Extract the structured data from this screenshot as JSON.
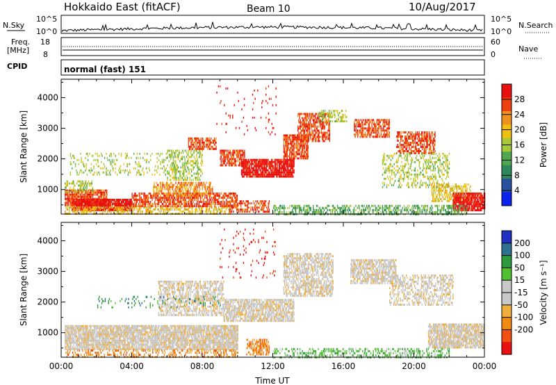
{
  "header": {
    "station": "Hokkaido East (fitACF)",
    "beam": "Beam 10",
    "date": "10/Aug/2017"
  },
  "strip_labels": {
    "nsky": "N.Sky",
    "nsearch": "N.Search",
    "freq_line1": "Freq.",
    "freq_line2": "[MHz]",
    "nave": "Nave",
    "cpid": "CPID",
    "cpid_value": "normal (fast) 151",
    "nsky_ticks": [
      "10^5",
      "10^0"
    ],
    "freq_ticks": [
      "18",
      "8"
    ],
    "nave_ticks": [
      "60",
      "0"
    ]
  },
  "colors": {
    "power": [
      "#0a22ee",
      "#2a50a0",
      "#2e8a5a",
      "#4fa84f",
      "#a8c83a",
      "#f0c010",
      "#f09020",
      "#f04010",
      "#e81010"
    ],
    "velocity": [
      "#e81010",
      "#f05010",
      "#f08a10",
      "#f0b040",
      "#c8c8c8",
      "#c8c8c8",
      "#50c030",
      "#2e9a40",
      "#2e7090",
      "#2030c0"
    ]
  },
  "chart_data": [
    {
      "type": "heatmap",
      "name": "power",
      "ylabel": "Slant Range [km]",
      "xlabel": "",
      "x_ticks": [
        "00:00",
        "04:00",
        "08:00",
        "12:00",
        "16:00",
        "20:00",
        "00:00"
      ],
      "x_hours": [
        0,
        4,
        8,
        12,
        16,
        20,
        24
      ],
      "xlim": [
        0,
        24
      ],
      "y_ticks": [
        1000,
        2000,
        3000,
        4000
      ],
      "ylim": [
        200,
        4600
      ],
      "colorbar_label": "Power [dB]",
      "colorbar_ticks": [
        "28",
        "24",
        "20",
        "16",
        "12",
        "8",
        "4"
      ],
      "colorbar_values": [
        28,
        24,
        20,
        16,
        12,
        8,
        4
      ],
      "colorbar_range": [
        0,
        32
      ],
      "regions": [
        {
          "x0": 0.2,
          "x1": 2.6,
          "y0": 500,
          "y1": 1000,
          "color_index": 7,
          "density": 0.8
        },
        {
          "x0": 0.2,
          "x1": 1.8,
          "y0": 900,
          "y1": 1300,
          "color_index": 4,
          "density": 0.4
        },
        {
          "x0": 0.6,
          "x1": 4.0,
          "y0": 350,
          "y1": 700,
          "color_index": 8,
          "density": 0.9
        },
        {
          "x0": 0.2,
          "x1": 9.6,
          "y0": 200,
          "y1": 450,
          "color_index": 5,
          "density": 0.5
        },
        {
          "x0": 4.0,
          "x1": 10.0,
          "y0": 450,
          "y1": 900,
          "color_index": 7,
          "density": 0.65
        },
        {
          "x0": 5.2,
          "x1": 8.6,
          "y0": 800,
          "y1": 1250,
          "color_index": 6,
          "density": 0.55
        },
        {
          "x0": 9.5,
          "x1": 11.8,
          "y0": 300,
          "y1": 650,
          "color_index": 7,
          "density": 0.5
        },
        {
          "x0": 6.0,
          "x1": 8.0,
          "y0": 1300,
          "y1": 2300,
          "color_index": 4,
          "density": 0.4
        },
        {
          "x0": 7.2,
          "x1": 8.8,
          "y0": 2300,
          "y1": 2700,
          "color_index": 7,
          "density": 0.7
        },
        {
          "x0": 9.0,
          "x1": 10.4,
          "y0": 1800,
          "y1": 2300,
          "color_index": 7,
          "density": 0.7
        },
        {
          "x0": 10.2,
          "x1": 13.2,
          "y0": 1400,
          "y1": 2000,
          "color_index": 8,
          "density": 0.85
        },
        {
          "x0": 12.6,
          "x1": 14.0,
          "y0": 2000,
          "y1": 2800,
          "color_index": 7,
          "density": 0.75
        },
        {
          "x0": 13.4,
          "x1": 15.2,
          "y0": 2600,
          "y1": 3500,
          "color_index": 7,
          "density": 0.6
        },
        {
          "x0": 14.6,
          "x1": 16.2,
          "y0": 3200,
          "y1": 3600,
          "color_index": 4,
          "density": 0.4
        },
        {
          "x0": 16.6,
          "x1": 18.6,
          "y0": 2700,
          "y1": 3300,
          "color_index": 7,
          "density": 0.65
        },
        {
          "x0": 19.0,
          "x1": 21.2,
          "y0": 2200,
          "y1": 2900,
          "color_index": 7,
          "density": 0.6
        },
        {
          "x0": 18.2,
          "x1": 22.0,
          "y0": 1100,
          "y1": 2200,
          "color_index": 4,
          "density": 0.3
        },
        {
          "x0": 21.0,
          "x1": 23.2,
          "y0": 600,
          "y1": 1200,
          "color_index": 5,
          "density": 0.5
        },
        {
          "x0": 22.2,
          "x1": 24.0,
          "y0": 300,
          "y1": 900,
          "color_index": 8,
          "density": 0.85
        },
        {
          "x0": 12.0,
          "x1": 23.0,
          "y0": 200,
          "y1": 500,
          "color_index": 3,
          "density": 0.45
        },
        {
          "x0": 8.8,
          "x1": 12.2,
          "y0": 2800,
          "y1": 4400,
          "color_index": 8,
          "density": 0.04
        },
        {
          "x0": 0.5,
          "x1": 6.0,
          "y0": 1500,
          "y1": 2200,
          "color_index": 4,
          "density": 0.18
        }
      ]
    },
    {
      "type": "heatmap",
      "name": "velocity",
      "ylabel": "Slant Range [km]",
      "xlabel": "Time UT",
      "x_ticks": [
        "00:00",
        "04:00",
        "08:00",
        "12:00",
        "16:00",
        "20:00",
        "00:00"
      ],
      "x_hours": [
        0,
        4,
        8,
        12,
        16,
        20,
        24
      ],
      "xlim": [
        0,
        24
      ],
      "y_ticks": [
        1000,
        2000,
        3000,
        4000
      ],
      "ylim": [
        200,
        4600
      ],
      "colorbar_label": "Velocity [m s⁻¹]",
      "colorbar_ticks": [
        "200",
        "100",
        "50",
        "15",
        "-15",
        "-50",
        "-100",
        "-200"
      ],
      "colorbar_values": [
        200,
        100,
        50,
        15,
        -15,
        -50,
        -100,
        -200
      ],
      "regions": [
        {
          "x0": 0.2,
          "x1": 10.0,
          "y0": 500,
          "y1": 1250,
          "color_index": 4,
          "density": 0.85
        },
        {
          "x0": 0.2,
          "x1": 10.0,
          "y0": 200,
          "y1": 450,
          "color_index": 2,
          "density": 0.35
        },
        {
          "x0": 5.5,
          "x1": 9.2,
          "y0": 1600,
          "y1": 2700,
          "color_index": 4,
          "density": 0.55
        },
        {
          "x0": 9.2,
          "x1": 13.2,
          "y0": 1400,
          "y1": 2100,
          "color_index": 4,
          "density": 0.75
        },
        {
          "x0": 12.6,
          "x1": 15.4,
          "y0": 2200,
          "y1": 3600,
          "color_index": 4,
          "density": 0.6
        },
        {
          "x0": 16.4,
          "x1": 19.0,
          "y0": 2600,
          "y1": 3400,
          "color_index": 4,
          "density": 0.7
        },
        {
          "x0": 18.6,
          "x1": 22.2,
          "y0": 1900,
          "y1": 2900,
          "color_index": 4,
          "density": 0.45
        },
        {
          "x0": 20.8,
          "x1": 24.0,
          "y0": 500,
          "y1": 1300,
          "color_index": 4,
          "density": 0.8
        },
        {
          "x0": 12.0,
          "x1": 22.0,
          "y0": 200,
          "y1": 500,
          "color_index": 6,
          "density": 0.35
        },
        {
          "x0": 10.5,
          "x1": 11.8,
          "y0": 300,
          "y1": 800,
          "color_index": 2,
          "density": 0.55
        },
        {
          "x0": 2.0,
          "x1": 9.0,
          "y0": 1800,
          "y1": 2200,
          "color_index": 7,
          "density": 0.12
        },
        {
          "x0": 8.8,
          "x1": 12.2,
          "y0": 2800,
          "y1": 4400,
          "color_index": 0,
          "density": 0.04
        }
      ]
    }
  ],
  "nsky_series_note": "",
  "x_axis_title": "Time UT"
}
